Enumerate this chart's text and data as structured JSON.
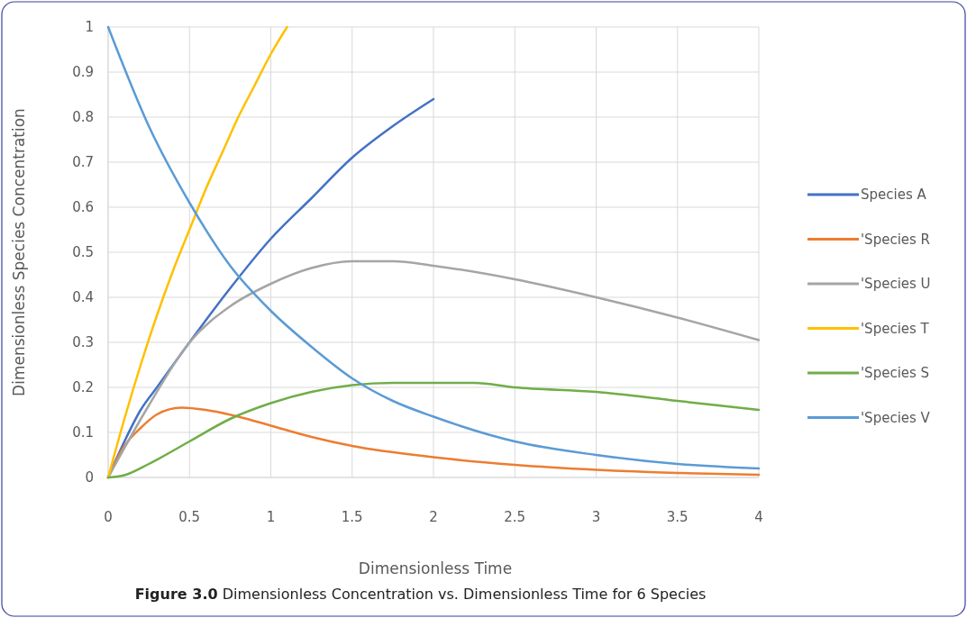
{
  "chart_data": {
    "type": "line",
    "xlabel": "Dimensionless Time",
    "ylabel": "Dimensionless Species Concentration",
    "annotations": [
      "Figure 3.0 Dimensionless Concentration vs. Dimensionless Time for 6 Species"
    ],
    "xlim": [
      0,
      4
    ],
    "xticks": [
      0,
      0.5,
      1,
      1.5,
      2,
      2.5,
      3,
      3.5,
      4
    ],
    "ylim": [
      0,
      1
    ],
    "yticks": [
      0,
      0.1,
      0.2,
      0.3,
      0.4,
      0.5,
      0.6,
      0.7,
      0.8,
      0.9,
      1
    ],
    "grid": true,
    "legend": "right",
    "line_style": "solid",
    "series": [
      {
        "name": "Species A",
        "color": "#4472c4",
        "x": [
          0,
          0.1,
          0.2,
          0.3,
          0.5,
          0.75,
          1,
          1.25,
          1.5,
          1.75,
          2
        ],
        "values": [
          0,
          0.08,
          0.15,
          0.2,
          0.3,
          0.42,
          0.53,
          0.62,
          0.71,
          0.78,
          0.84
        ]
      },
      {
        "name": "'Species R",
        "color": "#ed7d31",
        "x": [
          0,
          0.1,
          0.2,
          0.3,
          0.45,
          0.6,
          0.8,
          1,
          1.25,
          1.5,
          2,
          2.5,
          3,
          3.5,
          4
        ],
        "values": [
          0,
          0.07,
          0.11,
          0.14,
          0.155,
          0.15,
          0.135,
          0.115,
          0.09,
          0.07,
          0.045,
          0.028,
          0.017,
          0.01,
          0.006
        ]
      },
      {
        "name": "'Species U",
        "color": "#a5a5a5",
        "x": [
          0,
          0.25,
          0.5,
          0.75,
          1,
          1.25,
          1.5,
          1.75,
          2,
          2.5,
          3,
          3.5,
          4
        ],
        "values": [
          0,
          0.16,
          0.3,
          0.38,
          0.43,
          0.465,
          0.48,
          0.48,
          0.47,
          0.44,
          0.4,
          0.355,
          0.305
        ]
      },
      {
        "name": "'Species T",
        "color": "#ffc000",
        "x": [
          0,
          0.1,
          0.2,
          0.3,
          0.4,
          0.5,
          0.6,
          0.7,
          0.8,
          0.9,
          1,
          1.1
        ],
        "values": [
          0,
          0.13,
          0.25,
          0.36,
          0.46,
          0.55,
          0.64,
          0.72,
          0.8,
          0.87,
          0.94,
          1
        ]
      },
      {
        "name": "'Species S",
        "color": "#70ad47",
        "x": [
          0,
          0.1,
          0.25,
          0.5,
          0.75,
          1,
          1.25,
          1.5,
          1.75,
          2,
          2.25,
          2.5,
          3,
          3.5,
          4
        ],
        "values": [
          0,
          0.005,
          0.03,
          0.08,
          0.13,
          0.165,
          0.19,
          0.205,
          0.21,
          0.21,
          0.21,
          0.2,
          0.19,
          0.17,
          0.15
        ]
      },
      {
        "name": "'Species V",
        "color": "#5b9bd5",
        "x": [
          0,
          0.25,
          0.5,
          0.75,
          1,
          1.25,
          1.5,
          1.75,
          2,
          2.5,
          3,
          3.5,
          4
        ],
        "values": [
          1,
          0.78,
          0.61,
          0.47,
          0.37,
          0.29,
          0.22,
          0.17,
          0.135,
          0.08,
          0.05,
          0.03,
          0.02
        ]
      }
    ]
  }
}
